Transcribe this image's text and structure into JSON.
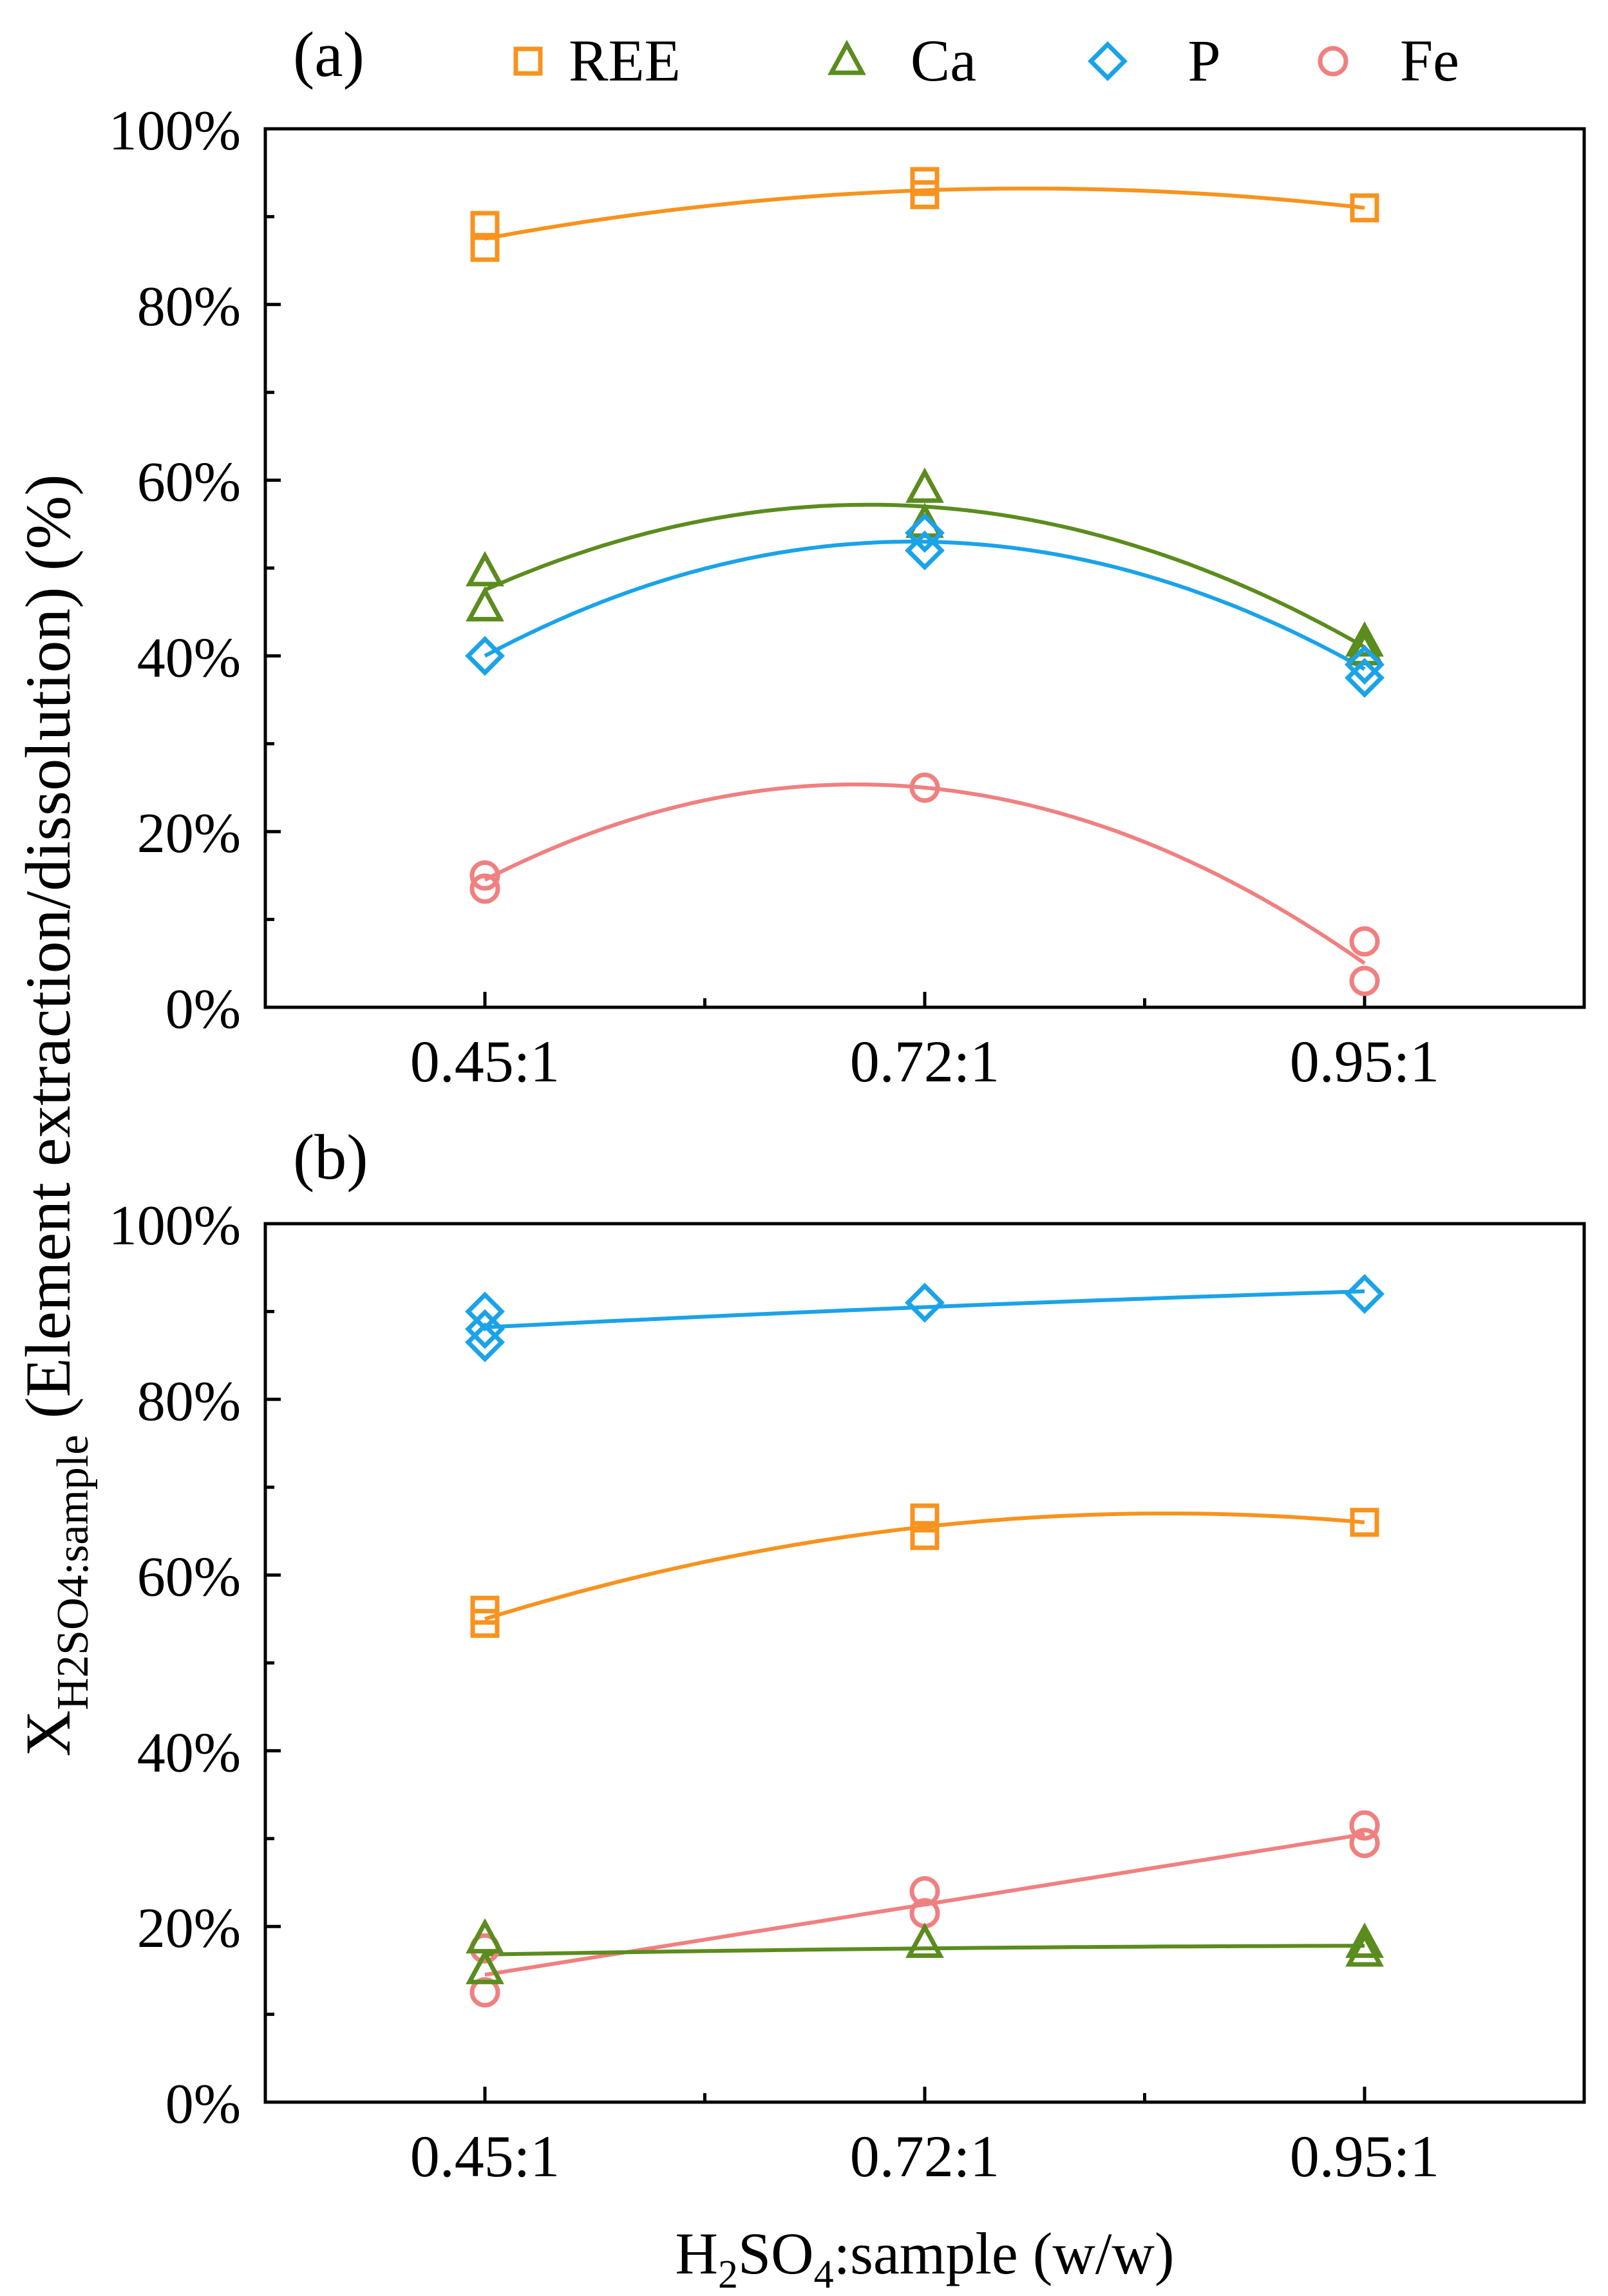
{
  "figure": {
    "y_axis_label_main": "X",
    "y_axis_label_sub": "H2SO4:sample",
    "y_axis_label_rest": " (Element extraction/dissolution) (%)",
    "x_axis_label": {
      "h": "H",
      "sub2": "2",
      "so": "SO",
      "sub4": "4",
      "rest": ":sample (w/w)"
    },
    "colors": {
      "REE": "#f7931e",
      "Ca": "#5b8c1e",
      "P": "#1aa3e8",
      "Fe": "#f08080"
    }
  },
  "legend": {
    "placement": "top (above panel a)",
    "items": [
      {
        "label": "REE",
        "marker": "square",
        "color": "#f7931e"
      },
      {
        "label": "Ca",
        "marker": "triangle",
        "color": "#5b8c1e"
      },
      {
        "label": "P",
        "marker": "diamond",
        "color": "#1aa3e8"
      },
      {
        "label": "Fe",
        "marker": "circle",
        "color": "#f08080"
      }
    ]
  },
  "chart_data": [
    {
      "panel_label": "(a)",
      "type": "scatter",
      "categories": [
        "0.45:1",
        "0.72:1",
        "0.95:1"
      ],
      "ylim": [
        0,
        100
      ],
      "y_ticks": [
        "0%",
        "20%",
        "40%",
        "60%",
        "80%",
        "100%"
      ],
      "series": [
        {
          "name": "REE",
          "marker": "square",
          "color": "#f7931e",
          "points": [
            [
              0,
              89
            ],
            [
              0,
              86.5
            ],
            [
              1,
              92.5
            ],
            [
              1,
              94
            ],
            [
              2,
              91
            ]
          ],
          "fit": [
            87.5,
            93,
            91
          ]
        },
        {
          "name": "Ca",
          "marker": "triangle",
          "color": "#5b8c1e",
          "points": [
            [
              0,
              49.5
            ],
            [
              0,
              45.5
            ],
            [
              1,
              59
            ],
            [
              1,
              55
            ],
            [
              2,
              41.5
            ],
            [
              2,
              40.5
            ]
          ],
          "fit": [
            47.5,
            57,
            41
          ]
        },
        {
          "name": "P",
          "marker": "diamond",
          "color": "#1aa3e8",
          "points": [
            [
              0,
              40
            ],
            [
              1,
              54
            ],
            [
              1,
              52
            ],
            [
              2,
              39
            ],
            [
              2,
              37.5
            ]
          ],
          "fit": [
            40,
            53,
            38.5
          ]
        },
        {
          "name": "Fe",
          "marker": "circle",
          "color": "#f08080",
          "points": [
            [
              0,
              15
            ],
            [
              0,
              13.5
            ],
            [
              1,
              25
            ],
            [
              2,
              7.5
            ],
            [
              2,
              3
            ]
          ],
          "fit": [
            14.5,
            25,
            5
          ]
        }
      ]
    },
    {
      "panel_label": "(b)",
      "type": "scatter",
      "categories": [
        "0.45:1",
        "0.72:1",
        "0.95:1"
      ],
      "ylim": [
        0,
        100
      ],
      "y_ticks": [
        "0%",
        "20%",
        "40%",
        "60%",
        "80%",
        "100%"
      ],
      "series": [
        {
          "name": "P",
          "marker": "diamond",
          "color": "#1aa3e8",
          "points": [
            [
              0,
              90
            ],
            [
              0,
              88
            ],
            [
              0,
              86.5
            ],
            [
              1,
              91
            ],
            [
              2,
              92
            ]
          ],
          "fit": [
            88.2,
            90.5,
            92.3
          ]
        },
        {
          "name": "REE",
          "marker": "square",
          "color": "#f7931e",
          "points": [
            [
              0,
              56
            ],
            [
              0,
              54.5
            ],
            [
              1,
              66.5
            ],
            [
              1,
              64.5
            ],
            [
              2,
              66
            ]
          ],
          "fit": [
            55,
            65.5,
            66
          ]
        },
        {
          "name": "Fe",
          "marker": "circle",
          "color": "#f08080",
          "points": [
            [
              0,
              17.5
            ],
            [
              0,
              12.5
            ],
            [
              1,
              24
            ],
            [
              1,
              21.5
            ],
            [
              2,
              31.5
            ],
            [
              2,
              29.5
            ]
          ],
          "fit": [
            14.5,
            22.5,
            30.5
          ]
        },
        {
          "name": "Ca",
          "marker": "triangle",
          "color": "#5b8c1e",
          "points": [
            [
              0,
              18.5
            ],
            [
              0,
              15
            ],
            [
              1,
              18
            ],
            [
              2,
              18
            ],
            [
              2,
              17
            ]
          ],
          "fit": [
            16.8,
            17.5,
            17.8
          ]
        }
      ]
    }
  ]
}
